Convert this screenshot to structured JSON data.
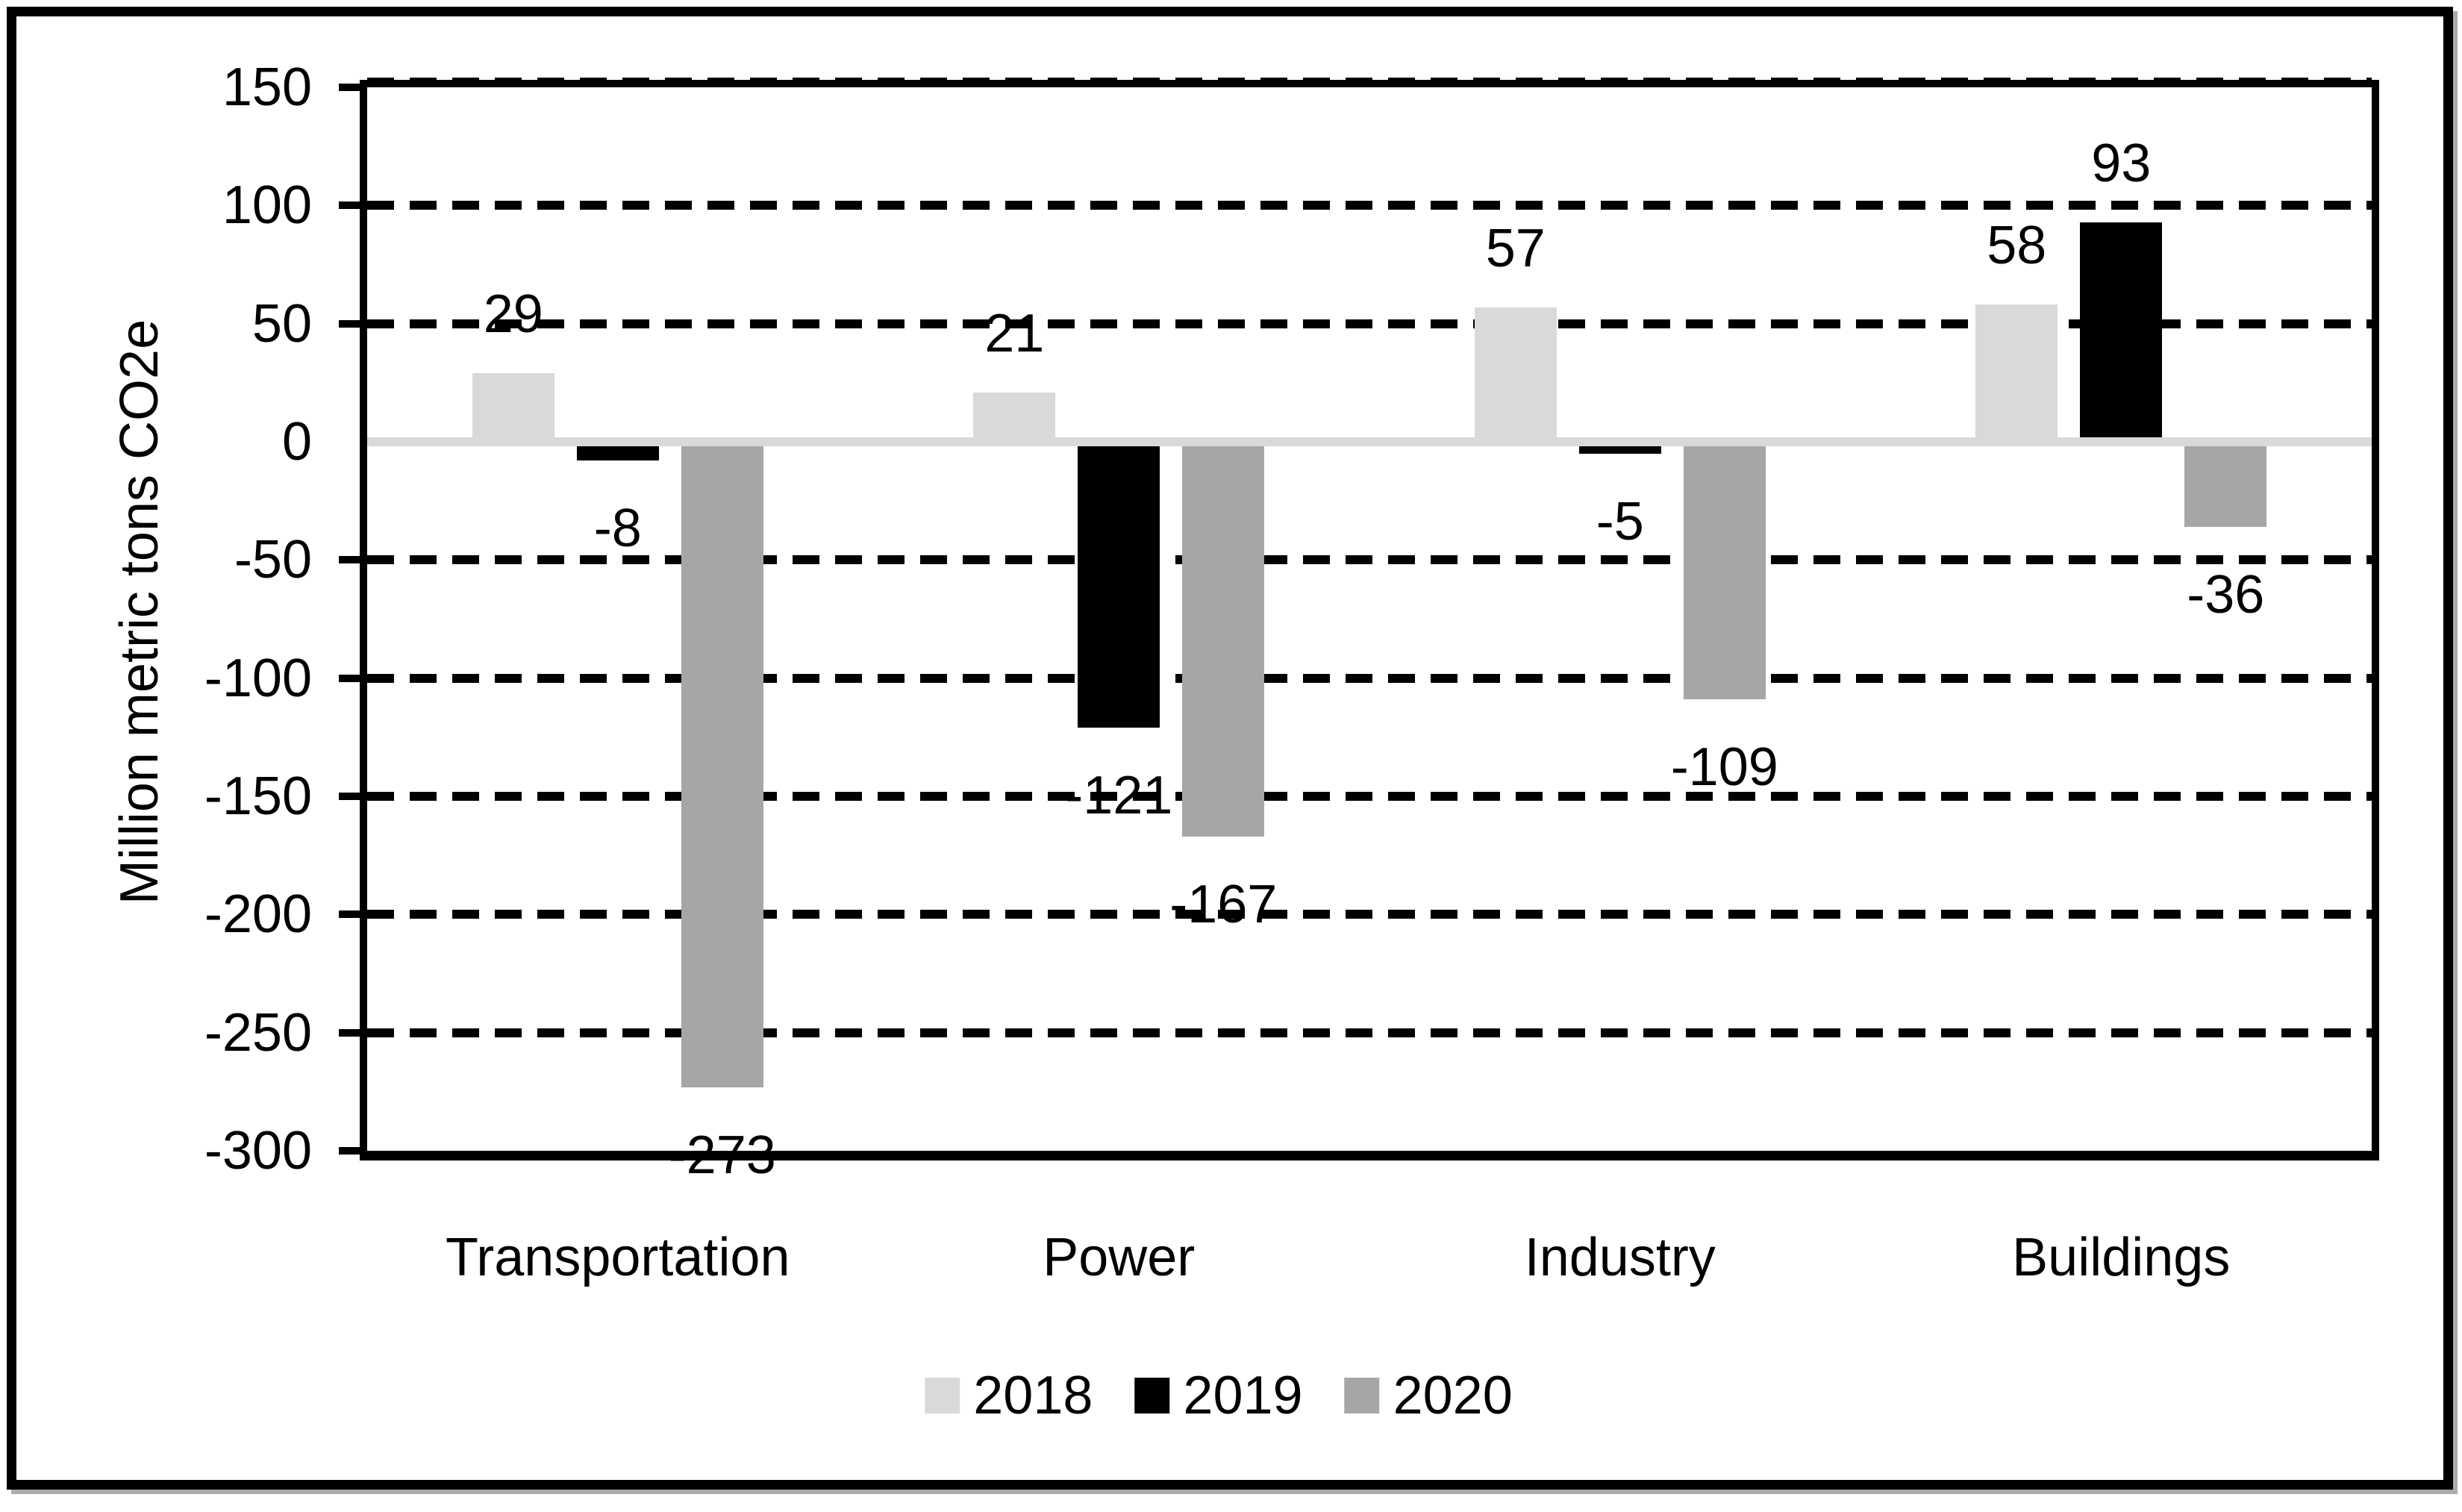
{
  "chart_data": {
    "type": "bar",
    "title": "",
    "ylabel": "Million metric tons CO2e",
    "xlabel": "",
    "categories": [
      "Transportation",
      "Power",
      "Industry",
      "Buildings"
    ],
    "series": [
      {
        "name": "2018",
        "color": "#d9d9d9",
        "values": [
          29,
          21,
          57,
          58
        ]
      },
      {
        "name": "2019",
        "color": "#000000",
        "values": [
          -8,
          -121,
          -5,
          93
        ]
      },
      {
        "name": "2020",
        "color": "#a6a6a6",
        "values": [
          -273,
          -167,
          -109,
          -36
        ]
      }
    ],
    "data_labels_shown": true,
    "ylim": [
      -300,
      150
    ],
    "ytick_step": 50,
    "yticks": [
      150,
      100,
      50,
      0,
      -50,
      -100,
      -150,
      -200,
      -250,
      -300
    ],
    "grid": "horizontal-dashed",
    "gridline_color": "#000000",
    "zero_line_color": "#d9d9d9",
    "axis_color": "#000000",
    "text_color": "#000000",
    "legend_position": "bottom",
    "frame_color": "#000000",
    "frame_shadow_color": "#ababab",
    "background_color": "#ffffff"
  }
}
